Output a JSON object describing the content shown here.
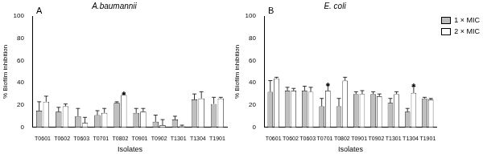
{
  "chart_data": [
    {
      "type": "bar",
      "title": "A.baumannii",
      "annotations": [
        {
          "text": "A"
        },
        {
          "text": "*",
          "category": "T0802",
          "series": "2 × MIC"
        }
      ],
      "x_label": "Isolates",
      "y_label": "% Biofilm inhibition",
      "categories": [
        "T0601",
        "T0602",
        "T0603",
        "T0701",
        "T0802",
        "T0901",
        "T0902",
        "T1301",
        "T1304",
        "T1901"
      ],
      "series": [
        {
          "name": "1 × MIC",
          "color": "#bfbfbf",
          "values": [
            15,
            14,
            10,
            11,
            22,
            13,
            5,
            7,
            25,
            21
          ],
          "errors": [
            8,
            4,
            7,
            4,
            1,
            4,
            6,
            3,
            5,
            6
          ]
        },
        {
          "name": "2 × MIC",
          "color": "#ffffff",
          "values": [
            23,
            19,
            4,
            13,
            29,
            14,
            2,
            1,
            26,
            26
          ],
          "errors": [
            5,
            2,
            5,
            4,
            1,
            3,
            5,
            1,
            6,
            1
          ]
        }
      ],
      "ylim": [
        0,
        100
      ],
      "yticks": [
        0,
        20,
        40,
        60,
        80,
        100
      ],
      "grid": false
    },
    {
      "type": "bar",
      "title": "E. coli",
      "annotations": [
        {
          "text": "B"
        },
        {
          "text": "*",
          "category": "T0701",
          "series": "2 × MIC"
        },
        {
          "text": "*",
          "category": "T1304",
          "series": "2 × MIC"
        }
      ],
      "x_label": "Isolates",
      "y_label": "% Biofilm inhibition",
      "categories": [
        "T0601",
        "T0602",
        "T0603",
        "T0701",
        "T0802",
        "T0901",
        "T0902",
        "T1301",
        "T1304",
        "T1901"
      ],
      "series": [
        {
          "name": "1 × MIC",
          "color": "#bfbfbf",
          "values": [
            32,
            33,
            33,
            19,
            19,
            30,
            30,
            22,
            14,
            26
          ],
          "errors": [
            10,
            3,
            4,
            7,
            7,
            2,
            2,
            4,
            3,
            1
          ]
        },
        {
          "name": "2 × MIC",
          "color": "#ffffff",
          "values": [
            44,
            33,
            32,
            33,
            42,
            30,
            28,
            30,
            31,
            25
          ],
          "errors": [
            1,
            2,
            4,
            5,
            3,
            3,
            2,
            2,
            6,
            1
          ]
        }
      ],
      "ylim": [
        0,
        100
      ],
      "yticks": [
        0,
        20,
        40,
        60,
        80,
        100
      ],
      "grid": false,
      "legend": "upper right"
    }
  ]
}
